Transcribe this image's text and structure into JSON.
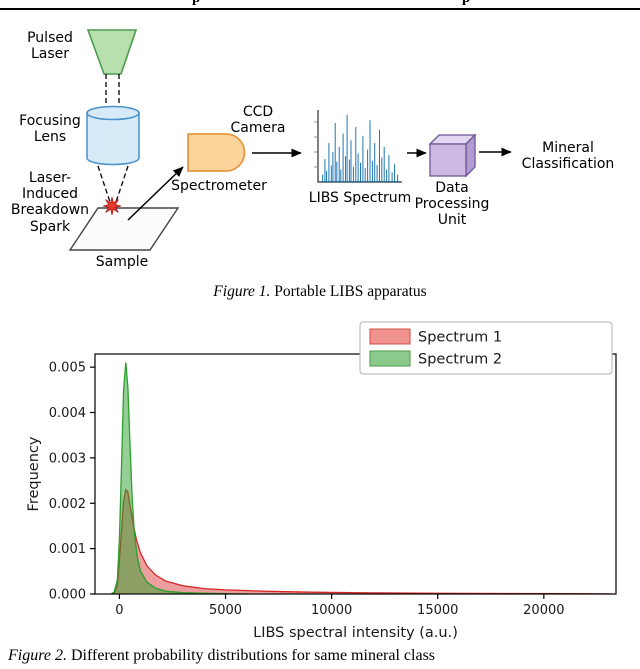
{
  "page": {
    "cropped_header_fragments": [
      "p",
      "p"
    ]
  },
  "figure1": {
    "labels": {
      "pulsed_laser": "Pulsed\nLaser",
      "focusing_lens": "Focusing\nLens",
      "spark": "Laser-\nInduced\nBreakdown\nSpark",
      "sample": "Sample",
      "spectrometer": "Spectrometer",
      "ccd_camera": "CCD\nCamera",
      "libs_spectrum": "LIBS Spectrum",
      "data_processing_unit": "Data\nProcessing\nUnit",
      "mineral_classification": "Mineral\nClassification"
    },
    "caption": {
      "tag": "Figure 1.",
      "text": " Portable LIBS apparatus"
    },
    "colors": {
      "laser_fill": "#b8e0ae",
      "laser_stroke": "#4c9b4c",
      "lens_fill": "#d6eaf8",
      "lens_stroke": "#4a90c8",
      "spark_fill": "#e8392e",
      "spark_stroke": "#b01f16",
      "sample_fill": "#fcfcfc",
      "sample_stroke": "#444444",
      "spectrometer_fill": "#fbd49c",
      "spectrometer_stroke": "#e8973f",
      "cube_front": "#cdb9e3",
      "cube_top": "#e2d6f0",
      "cube_side": "#b19bd2",
      "cube_stroke": "#6d5694",
      "spectrum_line": "#1f77b4"
    },
    "mini_spectrum_peaks": [
      [
        0.02,
        0.1
      ],
      [
        0.05,
        0.34
      ],
      [
        0.07,
        0.16
      ],
      [
        0.1,
        0.58
      ],
      [
        0.13,
        0.24
      ],
      [
        0.15,
        0.44
      ],
      [
        0.18,
        0.88
      ],
      [
        0.2,
        0.3
      ],
      [
        0.23,
        0.52
      ],
      [
        0.25,
        0.18
      ],
      [
        0.28,
        0.72
      ],
      [
        0.31,
        0.38
      ],
      [
        0.33,
        1.0
      ],
      [
        0.36,
        0.33
      ],
      [
        0.38,
        0.62
      ],
      [
        0.41,
        0.22
      ],
      [
        0.44,
        0.82
      ],
      [
        0.47,
        0.42
      ],
      [
        0.5,
        0.28
      ],
      [
        0.53,
        0.68
      ],
      [
        0.56,
        0.2
      ],
      [
        0.59,
        0.48
      ],
      [
        0.62,
        0.92
      ],
      [
        0.65,
        0.31
      ],
      [
        0.68,
        0.58
      ],
      [
        0.71,
        0.25
      ],
      [
        0.74,
        0.78
      ],
      [
        0.77,
        0.36
      ],
      [
        0.8,
        0.52
      ],
      [
        0.83,
        0.18
      ],
      [
        0.86,
        0.4
      ],
      [
        0.9,
        0.14
      ],
      [
        0.93,
        0.26
      ],
      [
        0.97,
        0.1
      ]
    ]
  },
  "figure2": {
    "caption": {
      "tag": "Figure 2.",
      "text": " Different probability distributions for same mineral class"
    }
  },
  "chart_data": {
    "type": "area",
    "title": "",
    "xlabel": "LIBS spectral intensity (a.u.)",
    "ylabel": "Frequency",
    "xlim": [
      -1150,
      23400
    ],
    "ylim": [
      0,
      0.00529
    ],
    "xticks": [
      0,
      5000,
      10000,
      15000,
      20000
    ],
    "yticks": [
      0,
      0.001,
      0.002,
      0.003,
      0.004,
      0.005
    ],
    "grid": false,
    "legend": {
      "position": "upper right",
      "entries": [
        {
          "label": "Spectrum 1",
          "color": "#f0928d",
          "edge": "#cc4c49"
        },
        {
          "label": "Spectrum 2",
          "color": "#8cc98c",
          "edge": "#4c9a4c"
        }
      ]
    },
    "series": [
      {
        "name": "Spectrum 1",
        "color": "#d62728",
        "fill": "rgba(214,39,40,0.45)",
        "points": [
          [
            -400,
            0
          ],
          [
            -250,
            2e-05
          ],
          [
            -100,
            0.00018
          ],
          [
            0,
            0.0007
          ],
          [
            100,
            0.0014
          ],
          [
            200,
            0.00205
          ],
          [
            300,
            0.0023
          ],
          [
            400,
            0.00225
          ],
          [
            500,
            0.00195
          ],
          [
            650,
            0.00155
          ],
          [
            800,
            0.0012
          ],
          [
            1000,
            0.0009
          ],
          [
            1300,
            0.00062
          ],
          [
            1700,
            0.00042
          ],
          [
            2200,
            0.00028
          ],
          [
            3000,
            0.00018
          ],
          [
            4000,
            0.00012
          ],
          [
            5000,
            9e-05
          ],
          [
            7000,
            6e-05
          ],
          [
            9000,
            4e-05
          ],
          [
            12000,
            2.5e-05
          ],
          [
            15000,
            1.6e-05
          ],
          [
            18000,
            1e-05
          ],
          [
            21000,
            6e-06
          ],
          [
            23000,
            3e-06
          ],
          [
            23200,
            0
          ]
        ]
      },
      {
        "name": "Spectrum 2",
        "color": "#2ca02c",
        "fill": "rgba(44,160,44,0.5)",
        "points": [
          [
            -400,
            0
          ],
          [
            -250,
            4e-05
          ],
          [
            -100,
            0.0003
          ],
          [
            0,
            0.0012
          ],
          [
            100,
            0.0028
          ],
          [
            200,
            0.0045
          ],
          [
            300,
            0.0051
          ],
          [
            400,
            0.00455
          ],
          [
            500,
            0.0033
          ],
          [
            600,
            0.00215
          ],
          [
            700,
            0.00135
          ],
          [
            850,
            0.0008
          ],
          [
            1000,
            0.0005
          ],
          [
            1300,
            0.00026
          ],
          [
            1700,
            0.00013
          ],
          [
            2200,
            6e-05
          ],
          [
            3000,
            3e-05
          ],
          [
            4000,
            1.5e-05
          ],
          [
            5000,
            8e-06
          ],
          [
            6000,
            0
          ]
        ]
      }
    ]
  }
}
